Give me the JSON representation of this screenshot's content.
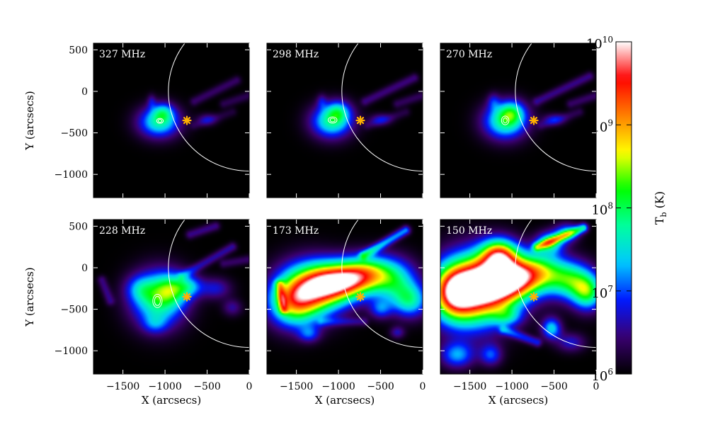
{
  "chart_data": {
    "type": "heatmap",
    "xlabel": "X (arcsecs)",
    "ylabel": "Y (arcsecs)",
    "xlim": [
      -1850,
      0
    ],
    "ylim": [
      -1280,
      580
    ],
    "xticks": [
      -1500,
      -1000,
      -500,
      0
    ],
    "xtick_labels": [
      "−1500",
      "−1000",
      "−500",
      "0"
    ],
    "yticks": [
      500,
      0,
      -500,
      -1000
    ],
    "ytick_labels": [
      "500",
      "0",
      "−500",
      "−1000"
    ],
    "solar_limb_radius": 960,
    "marker": {
      "symbol": "asterisk",
      "x": -740,
      "y": -350,
      "color": "#ffb000"
    },
    "colorbar": {
      "label_main": "T",
      "label_sub": "b",
      "label_unit": " (K)",
      "scale": "log",
      "range_exponents": [
        6,
        10
      ],
      "tick_exponents": [
        10,
        9,
        8,
        7,
        6
      ],
      "tick_base": "10",
      "colors": [
        "#000000",
        "#3a0070",
        "#0018ff",
        "#00c8ff",
        "#00ffa0",
        "#00ff00",
        "#ffff00",
        "#ff8000",
        "#ff0000",
        "#ffffff"
      ]
    },
    "panels": [
      {
        "label": "327 MHz",
        "blobs": [
          [
            -1070,
            -370,
            170,
            130,
            0.42
          ],
          [
            -1020,
            -250,
            90,
            80,
            0.22
          ],
          [
            -1160,
            -120,
            35,
            60,
            0.12
          ],
          [
            -500,
            -340,
            80,
            50,
            0.14
          ]
        ],
        "streaks": [
          [
            -650,
            -120,
            -150,
            130,
            0.1
          ],
          [
            -300,
            -150,
            0,
            -50,
            0.08
          ],
          [
            -650,
            -410,
            -200,
            -250,
            0.06
          ]
        ],
        "contours": [
          [
            -1060,
            -355,
            40,
            30
          ],
          [
            -1060,
            -355,
            22,
            17
          ]
        ]
      },
      {
        "label": "298 MHz",
        "blobs": [
          [
            -1080,
            -360,
            170,
            140,
            0.44
          ],
          [
            -1000,
            -240,
            100,
            90,
            0.24
          ],
          [
            -1200,
            -120,
            40,
            60,
            0.12
          ],
          [
            -500,
            -340,
            90,
            50,
            0.15
          ]
        ],
        "streaks": [
          [
            -680,
            -120,
            -100,
            160,
            0.12
          ],
          [
            -300,
            -150,
            0,
            -50,
            0.09
          ],
          [
            -650,
            -410,
            -200,
            -250,
            0.07
          ]
        ],
        "contours": [
          [
            -1070,
            -345,
            52,
            38
          ],
          [
            -1070,
            -345,
            30,
            22
          ]
        ]
      },
      {
        "label": "270 MHz",
        "blobs": [
          [
            -1080,
            -360,
            180,
            150,
            0.46
          ],
          [
            -1000,
            -250,
            110,
            100,
            0.26
          ],
          [
            -1220,
            -120,
            50,
            70,
            0.14
          ],
          [
            -500,
            -340,
            90,
            50,
            0.16
          ]
        ],
        "streaks": [
          [
            -700,
            -120,
            -80,
            180,
            0.13
          ],
          [
            -300,
            -150,
            0,
            -50,
            0.1
          ],
          [
            -650,
            -410,
            -200,
            -250,
            0.08
          ]
        ],
        "contours": [
          [
            -1080,
            -350,
            44,
            52
          ],
          [
            -1080,
            -350,
            24,
            30
          ]
        ]
      },
      {
        "label": "228 MHz",
        "blobs": [
          [
            -1080,
            -380,
            220,
            230,
            0.48
          ],
          [
            -900,
            -250,
            150,
            130,
            0.3
          ],
          [
            -1300,
            -250,
            120,
            110,
            0.18
          ],
          [
            -700,
            -220,
            110,
            90,
            0.2
          ],
          [
            -400,
            -250,
            130,
            90,
            0.18
          ],
          [
            -1120,
            -680,
            100,
            80,
            0.14
          ],
          [
            -200,
            -480,
            80,
            70,
            0.14
          ]
        ],
        "streaks": [
          [
            -800,
            -100,
            -200,
            250,
            0.15
          ],
          [
            -700,
            400,
            -400,
            500,
            0.13
          ],
          [
            -1750,
            -150,
            -1650,
            -400,
            0.12
          ],
          [
            -300,
            50,
            0,
            100,
            0.1
          ]
        ],
        "contours": [
          [
            -1090,
            -400,
            55,
            80
          ],
          [
            -1090,
            -400,
            35,
            55
          ]
        ]
      },
      {
        "label": "173 MHz",
        "blobs": [
          [
            -1350,
            -270,
            260,
            230,
            0.62
          ],
          [
            -1100,
            -190,
            220,
            170,
            0.56
          ],
          [
            -1550,
            -430,
            200,
            200,
            0.44
          ],
          [
            -850,
            -150,
            200,
            150,
            0.48
          ],
          [
            -650,
            -50,
            200,
            150,
            0.4
          ],
          [
            -350,
            -150,
            200,
            180,
            0.4
          ],
          [
            -150,
            -400,
            150,
            140,
            0.38
          ],
          [
            -500,
            -500,
            90,
            80,
            0.22
          ],
          [
            -1350,
            -800,
            90,
            70,
            0.2
          ],
          [
            -300,
            -780,
            60,
            50,
            0.16
          ]
        ],
        "streaks": [
          [
            -700,
            150,
            -200,
            450,
            0.3
          ],
          [
            -1200,
            -650,
            -700,
            -650,
            0.12
          ],
          [
            -1700,
            -200,
            -1650,
            -500,
            0.3
          ]
        ],
        "contours": [
          [
            -1290,
            -240,
            75,
            55
          ],
          [
            -1290,
            -240,
            50,
            35
          ]
        ]
      },
      {
        "label": "150 MHz",
        "blobs": [
          [
            -1450,
            -280,
            300,
            300,
            0.74
          ],
          [
            -1200,
            -170,
            260,
            220,
            0.66
          ],
          [
            -1700,
            -300,
            180,
            220,
            0.58
          ],
          [
            -950,
            -120,
            200,
            170,
            0.5
          ],
          [
            -1150,
            170,
            150,
            130,
            0.56
          ],
          [
            -650,
            -50,
            200,
            170,
            0.46
          ],
          [
            -300,
            -150,
            180,
            160,
            0.44
          ],
          [
            -100,
            -300,
            130,
            150,
            0.46
          ],
          [
            -530,
            -730,
            80,
            90,
            0.36
          ],
          [
            -1050,
            -590,
            120,
            80,
            0.22
          ],
          [
            -1650,
            -1050,
            140,
            110,
            0.3
          ],
          [
            -1250,
            -1050,
            90,
            90,
            0.24
          ],
          [
            -300,
            -900,
            120,
            80,
            0.18
          ],
          [
            -550,
            300,
            110,
            90,
            0.4
          ],
          [
            -350,
            420,
            100,
            80,
            0.3
          ]
        ],
        "streaks": [
          [
            -700,
            250,
            -150,
            480,
            0.4
          ],
          [
            -1100,
            -750,
            -700,
            -900,
            0.2
          ]
        ],
        "contours": [
          [
            -1400,
            -270,
            115,
            65
          ],
          [
            -1400,
            -270,
            80,
            45
          ]
        ]
      }
    ]
  }
}
